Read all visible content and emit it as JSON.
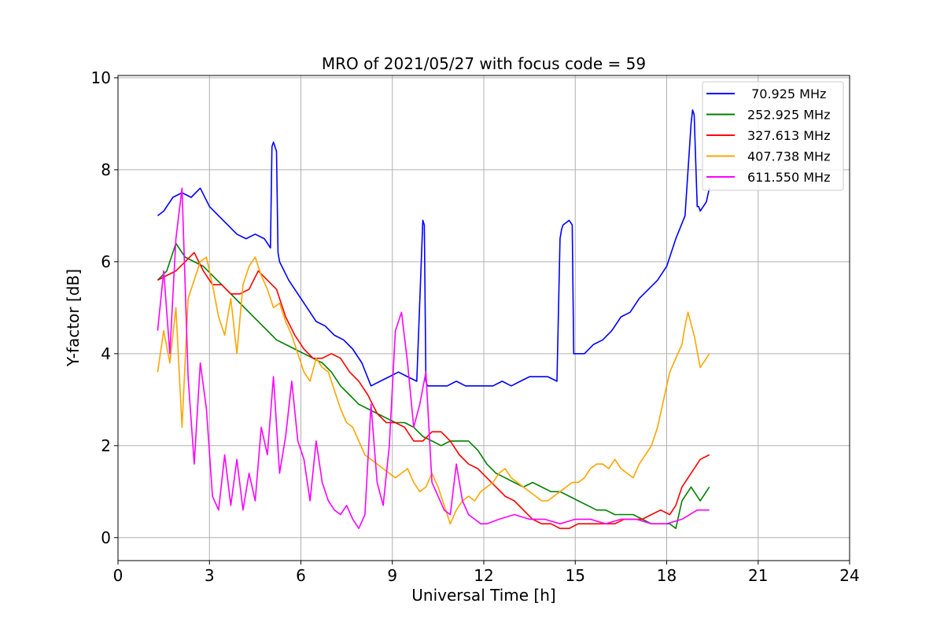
{
  "chart_data": {
    "type": "line",
    "title": "MRO of 2021/05/27 with focus code = 59",
    "xlabel": "Universal Time [h]",
    "ylabel": "Y-factor [dB]",
    "xlim": [
      0,
      24
    ],
    "ylim": [
      -0.5,
      10.05
    ],
    "xticks": [
      0,
      3,
      6,
      9,
      12,
      15,
      18,
      21,
      24
    ],
    "xtick_labels": [
      "0",
      "3",
      "6",
      "9",
      "12",
      "15",
      "18",
      "21",
      "24"
    ],
    "yticks": [
      0,
      2,
      4,
      6,
      8,
      10
    ],
    "ytick_labels": [
      "0",
      "2",
      "4",
      "6",
      "8",
      "10"
    ],
    "grid": true,
    "legend_position": "top-right",
    "series": [
      {
        "name": " 70.925 MHz",
        "color": "#0000ff",
        "x": [
          1.3,
          1.5,
          1.8,
          2.1,
          2.4,
          2.7,
          3.0,
          3.3,
          3.6,
          3.9,
          4.2,
          4.5,
          4.8,
          5.0,
          5.05,
          5.1,
          5.2,
          5.25,
          5.3,
          5.6,
          5.9,
          6.2,
          6.5,
          6.8,
          7.1,
          7.4,
          7.7,
          8.0,
          8.3,
          8.6,
          8.9,
          9.2,
          9.5,
          9.8,
          10.0,
          10.05,
          10.1,
          10.15,
          10.2,
          10.5,
          10.8,
          11.1,
          11.4,
          11.7,
          12.0,
          12.3,
          12.6,
          12.9,
          13.2,
          13.5,
          13.8,
          14.1,
          14.4,
          14.5,
          14.55,
          14.6,
          14.8,
          14.9,
          14.95,
          15.0,
          15.3,
          15.6,
          15.9,
          16.2,
          16.5,
          16.8,
          17.1,
          17.4,
          17.7,
          18.0,
          18.3,
          18.6,
          18.8,
          18.85,
          18.9,
          19.0,
          19.05,
          19.1,
          19.3,
          19.4
        ],
        "y": [
          7.0,
          7.1,
          7.4,
          7.5,
          7.4,
          7.6,
          7.2,
          7.0,
          6.8,
          6.6,
          6.5,
          6.6,
          6.5,
          6.3,
          8.5,
          8.6,
          8.4,
          6.2,
          6.0,
          5.6,
          5.3,
          5.0,
          4.7,
          4.6,
          4.4,
          4.3,
          4.1,
          3.8,
          3.3,
          3.4,
          3.5,
          3.6,
          3.5,
          3.4,
          6.9,
          6.8,
          3.4,
          3.3,
          3.3,
          3.3,
          3.3,
          3.4,
          3.3,
          3.3,
          3.3,
          3.3,
          3.4,
          3.3,
          3.4,
          3.5,
          3.5,
          3.5,
          3.4,
          6.5,
          6.7,
          6.8,
          6.9,
          6.8,
          4.0,
          4.0,
          4.0,
          4.2,
          4.3,
          4.5,
          4.8,
          4.9,
          5.2,
          5.4,
          5.6,
          5.9,
          6.5,
          7.0,
          9.0,
          9.3,
          9.2,
          7.2,
          7.2,
          7.1,
          7.3,
          7.6
        ]
      },
      {
        "name": "252.925 MHz",
        "color": "#008000",
        "x": [
          1.3,
          1.6,
          1.9,
          2.2,
          2.5,
          2.8,
          3.1,
          3.4,
          3.7,
          4.0,
          4.3,
          4.6,
          4.9,
          5.2,
          5.5,
          5.8,
          6.1,
          6.4,
          6.7,
          7.0,
          7.3,
          7.6,
          7.9,
          8.2,
          8.5,
          8.8,
          9.1,
          9.4,
          9.7,
          10.0,
          10.3,
          10.6,
          10.9,
          11.2,
          11.5,
          11.8,
          12.1,
          12.4,
          12.7,
          13.0,
          13.3,
          13.6,
          13.9,
          14.2,
          14.5,
          14.8,
          15.1,
          15.4,
          15.7,
          16.0,
          16.3,
          16.6,
          16.9,
          17.2,
          17.5,
          17.8,
          18.1,
          18.3,
          18.5,
          18.8,
          19.1,
          19.4
        ],
        "y": [
          5.6,
          5.8,
          6.4,
          6.1,
          6.0,
          5.9,
          5.7,
          5.5,
          5.3,
          5.1,
          4.9,
          4.7,
          4.5,
          4.3,
          4.2,
          4.1,
          4.0,
          3.9,
          3.8,
          3.6,
          3.3,
          3.1,
          2.9,
          2.8,
          2.7,
          2.6,
          2.5,
          2.5,
          2.4,
          2.2,
          2.1,
          2.0,
          2.1,
          2.1,
          2.1,
          1.9,
          1.6,
          1.4,
          1.3,
          1.2,
          1.1,
          1.2,
          1.1,
          1.0,
          1.0,
          0.9,
          0.8,
          0.7,
          0.6,
          0.6,
          0.5,
          0.5,
          0.5,
          0.4,
          0.3,
          0.3,
          0.3,
          0.2,
          0.8,
          1.1,
          0.8,
          1.1
        ]
      },
      {
        "name": "327.613 MHz",
        "color": "#ff0000",
        "x": [
          1.3,
          1.6,
          1.9,
          2.2,
          2.5,
          2.8,
          3.1,
          3.4,
          3.7,
          4.0,
          4.3,
          4.6,
          4.9,
          5.2,
          5.5,
          5.8,
          6.1,
          6.4,
          6.7,
          7.0,
          7.3,
          7.6,
          7.9,
          8.2,
          8.5,
          8.8,
          9.1,
          9.4,
          9.7,
          10.0,
          10.3,
          10.6,
          10.9,
          11.2,
          11.5,
          11.8,
          12.1,
          12.4,
          12.7,
          13.0,
          13.3,
          13.6,
          13.9,
          14.2,
          14.5,
          14.8,
          15.1,
          15.4,
          15.7,
          16.0,
          16.3,
          16.6,
          16.9,
          17.2,
          17.5,
          17.8,
          18.1,
          18.3,
          18.5,
          18.8,
          19.1,
          19.4
        ],
        "y": [
          5.6,
          5.7,
          5.8,
          6.0,
          6.2,
          5.8,
          5.5,
          5.5,
          5.3,
          5.3,
          5.4,
          5.8,
          5.6,
          5.4,
          4.8,
          4.4,
          4.1,
          3.9,
          3.9,
          4.0,
          3.9,
          3.6,
          3.4,
          3.1,
          2.7,
          2.5,
          2.5,
          2.4,
          2.1,
          2.1,
          2.3,
          2.3,
          2.1,
          1.8,
          1.6,
          1.5,
          1.3,
          1.1,
          0.9,
          0.8,
          0.6,
          0.4,
          0.3,
          0.3,
          0.2,
          0.2,
          0.3,
          0.3,
          0.3,
          0.3,
          0.3,
          0.4,
          0.4,
          0.4,
          0.5,
          0.6,
          0.5,
          0.7,
          1.1,
          1.4,
          1.7,
          1.8
        ]
      },
      {
        "name": "407.738 MHz",
        "color": "#ffa500",
        "x": [
          1.3,
          1.5,
          1.7,
          1.9,
          2.1,
          2.3,
          2.5,
          2.7,
          2.9,
          3.1,
          3.3,
          3.5,
          3.7,
          3.9,
          4.1,
          4.3,
          4.5,
          4.7,
          4.9,
          5.1,
          5.3,
          5.5,
          5.7,
          5.9,
          6.1,
          6.3,
          6.5,
          6.7,
          6.9,
          7.1,
          7.3,
          7.5,
          7.7,
          7.9,
          8.1,
          8.3,
          8.5,
          8.7,
          8.9,
          9.1,
          9.3,
          9.5,
          9.7,
          9.9,
          10.1,
          10.3,
          10.5,
          10.7,
          10.9,
          11.1,
          11.3,
          11.5,
          11.7,
          11.9,
          12.1,
          12.3,
          12.5,
          12.7,
          12.9,
          13.1,
          13.3,
          13.5,
          13.7,
          13.9,
          14.1,
          14.3,
          14.5,
          14.7,
          14.9,
          15.1,
          15.3,
          15.5,
          15.7,
          15.9,
          16.1,
          16.3,
          16.5,
          16.7,
          16.9,
          17.1,
          17.3,
          17.5,
          17.7,
          17.9,
          18.1,
          18.3,
          18.5,
          18.6,
          18.7,
          18.9,
          19.1,
          19.3,
          19.4
        ],
        "y": [
          3.6,
          4.5,
          3.8,
          5.0,
          2.4,
          5.2,
          5.6,
          6.0,
          6.1,
          5.5,
          4.8,
          4.4,
          5.2,
          4.0,
          5.5,
          5.9,
          6.1,
          5.7,
          5.4,
          5.0,
          5.1,
          4.7,
          4.4,
          4.0,
          3.6,
          3.4,
          3.9,
          3.7,
          3.6,
          3.2,
          2.8,
          2.5,
          2.4,
          2.1,
          1.8,
          1.7,
          1.6,
          1.5,
          1.4,
          1.3,
          1.4,
          1.5,
          1.2,
          1.0,
          1.1,
          1.4,
          1.1,
          0.7,
          0.3,
          0.6,
          0.8,
          0.9,
          0.8,
          1.0,
          1.1,
          1.2,
          1.4,
          1.5,
          1.3,
          1.2,
          1.1,
          1.0,
          0.9,
          0.8,
          0.8,
          0.9,
          1.0,
          1.1,
          1.2,
          1.2,
          1.3,
          1.5,
          1.6,
          1.6,
          1.5,
          1.7,
          1.5,
          1.4,
          1.3,
          1.6,
          1.8,
          2.0,
          2.4,
          3.0,
          3.6,
          3.9,
          4.2,
          4.6,
          4.9,
          4.4,
          3.7,
          3.9,
          4.0
        ]
      },
      {
        "name": "611.550 MHz",
        "color": "#ff00ff",
        "x": [
          1.3,
          1.5,
          1.7,
          1.9,
          2.1,
          2.3,
          2.5,
          2.7,
          2.9,
          3.1,
          3.3,
          3.5,
          3.7,
          3.9,
          4.1,
          4.3,
          4.5,
          4.7,
          4.9,
          5.1,
          5.3,
          5.5,
          5.7,
          5.9,
          6.1,
          6.3,
          6.5,
          6.7,
          6.9,
          7.1,
          7.3,
          7.5,
          7.7,
          7.9,
          8.1,
          8.3,
          8.5,
          8.7,
          8.9,
          9.1,
          9.3,
          9.5,
          9.7,
          9.9,
          10.1,
          10.3,
          10.5,
          10.7,
          10.9,
          11.1,
          11.3,
          11.5,
          11.7,
          11.9,
          12.1,
          12.5,
          13.0,
          13.5,
          14.0,
          14.5,
          15.0,
          15.5,
          16.0,
          16.5,
          17.0,
          17.5,
          18.0,
          18.5,
          19.0,
          19.4
        ],
        "y": [
          4.5,
          5.8,
          4.0,
          6.5,
          7.6,
          3.5,
          1.6,
          3.8,
          2.8,
          0.9,
          0.6,
          1.8,
          0.7,
          1.7,
          0.6,
          1.4,
          0.8,
          2.4,
          1.8,
          3.5,
          1.4,
          2.2,
          3.4,
          2.1,
          1.7,
          0.8,
          2.1,
          1.2,
          0.8,
          0.6,
          0.5,
          0.7,
          0.4,
          0.2,
          0.5,
          2.9,
          1.2,
          0.7,
          2.0,
          4.5,
          4.9,
          3.8,
          2.4,
          2.9,
          3.6,
          1.2,
          0.9,
          0.6,
          0.5,
          1.6,
          0.8,
          0.5,
          0.4,
          0.3,
          0.3,
          0.4,
          0.5,
          0.4,
          0.4,
          0.3,
          0.4,
          0.4,
          0.3,
          0.4,
          0.4,
          0.3,
          0.3,
          0.4,
          0.6,
          0.6
        ]
      }
    ]
  }
}
